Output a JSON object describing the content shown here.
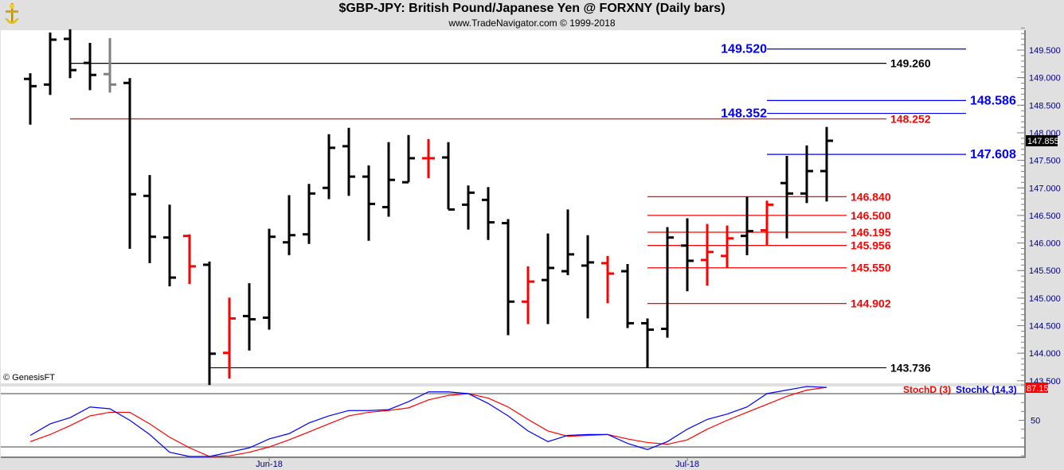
{
  "header": {
    "title": "$GBP-JPY:  British Pound/Japanese Yen @ FORXNY  (Daily bars)",
    "subtitle": "www.TradeNavigator.com © 1999-2018",
    "logo_icon": "gold-ship-wheel-logo"
  },
  "watermark": "© GenesisFT",
  "colors": {
    "up": "#000000",
    "down_highlight": "#ff0000",
    "gray": "#808080",
    "blue": "#0000ff",
    "red": "#ff0000",
    "axis_bg": "#e0e0e0",
    "axis_text": "#000080"
  },
  "chart_data": [
    {
      "type": "ohlc",
      "title": "$GBP-JPY:  British Pound/Japanese Yen @ FORXNY  (Daily bars)",
      "ylim": [
        143.5,
        149.9
      ],
      "y_tick_labels": [
        "149.500",
        "149.000",
        "148.500",
        "148.000",
        "147.500",
        "147.000",
        "146.500",
        "146.000",
        "145.500",
        "145.000",
        "144.500",
        "144.000",
        "143.500"
      ],
      "y_ticks": [
        149.5,
        149.0,
        148.5,
        148.0,
        147.5,
        147.0,
        146.5,
        146.0,
        145.5,
        145.0,
        144.5,
        144.0,
        143.5
      ],
      "x_tick_labels": [
        {
          "label": "Jun-18",
          "bar": 13
        },
        {
          "label": "Jul-18",
          "bar": 34
        }
      ],
      "last_price_label": "147.855",
      "last_price": 147.855,
      "bars": [
        {
          "o": 148.977,
          "h": 149.079,
          "l": 148.148,
          "c": 148.846,
          "color": "black"
        },
        {
          "o": 148.875,
          "h": 149.82,
          "l": 148.686,
          "c": 149.689,
          "color": "black"
        },
        {
          "o": 149.703,
          "h": 149.878,
          "l": 148.991,
          "c": 149.137,
          "color": "black"
        },
        {
          "o": 149.267,
          "h": 149.631,
          "l": 148.773,
          "c": 149.049,
          "color": "black"
        },
        {
          "o": 149.064,
          "h": 149.718,
          "l": 148.73,
          "c": 148.875,
          "color": "gray"
        },
        {
          "o": 148.904,
          "h": 148.991,
          "l": 145.895,
          "c": 146.884,
          "color": "black"
        },
        {
          "o": 146.855,
          "h": 147.233,
          "l": 145.634,
          "c": 146.113,
          "color": "black"
        },
        {
          "o": 146.099,
          "h": 146.695,
          "l": 145.212,
          "c": 145.372,
          "color": "black"
        },
        {
          "o": 146.128,
          "h": 146.157,
          "l": 145.256,
          "c": 145.576,
          "color": "red"
        },
        {
          "o": 145.605,
          "h": 145.663,
          "l": 143.424,
          "c": 143.991,
          "color": "black"
        },
        {
          "o": 144.006,
          "h": 145.009,
          "l": 143.541,
          "c": 144.631,
          "color": "red"
        },
        {
          "o": 144.674,
          "h": 145.27,
          "l": 144.049,
          "c": 144.616,
          "color": "black"
        },
        {
          "o": 144.645,
          "h": 146.259,
          "l": 144.427,
          "c": 146.113,
          "color": "black"
        },
        {
          "o": 146.012,
          "h": 146.869,
          "l": 145.779,
          "c": 146.142,
          "color": "black"
        },
        {
          "o": 146.157,
          "h": 147.073,
          "l": 145.983,
          "c": 146.898,
          "color": "black"
        },
        {
          "o": 147.0,
          "h": 147.974,
          "l": 146.796,
          "c": 147.727,
          "color": "black"
        },
        {
          "o": 147.756,
          "h": 148.09,
          "l": 146.855,
          "c": 147.204,
          "color": "black"
        },
        {
          "o": 147.204,
          "h": 147.407,
          "l": 146.041,
          "c": 146.709,
          "color": "black"
        },
        {
          "o": 146.651,
          "h": 147.829,
          "l": 146.477,
          "c": 147.145,
          "color": "black"
        },
        {
          "o": 147.102,
          "h": 147.959,
          "l": 147.102,
          "c": 147.538,
          "color": "black"
        },
        {
          "o": 147.538,
          "h": 147.887,
          "l": 147.174,
          "c": 147.538,
          "color": "red"
        },
        {
          "o": 147.552,
          "h": 147.829,
          "l": 146.608,
          "c": 146.608,
          "color": "black"
        },
        {
          "o": 146.695,
          "h": 147.044,
          "l": 146.244,
          "c": 146.913,
          "color": "black"
        },
        {
          "o": 146.782,
          "h": 147.015,
          "l": 146.055,
          "c": 146.375,
          "color": "black"
        },
        {
          "o": 146.36,
          "h": 146.433,
          "l": 144.326,
          "c": 144.936,
          "color": "black"
        },
        {
          "o": 144.936,
          "h": 145.576,
          "l": 144.529,
          "c": 145.3,
          "color": "red"
        },
        {
          "o": 145.328,
          "h": 146.172,
          "l": 144.529,
          "c": 145.547,
          "color": "black"
        },
        {
          "o": 145.488,
          "h": 146.608,
          "l": 145.416,
          "c": 145.794,
          "color": "black"
        },
        {
          "o": 145.59,
          "h": 146.142,
          "l": 144.631,
          "c": 145.648,
          "color": "black"
        },
        {
          "o": 145.634,
          "h": 145.765,
          "l": 144.907,
          "c": 145.445,
          "color": "red"
        },
        {
          "o": 145.488,
          "h": 145.619,
          "l": 144.456,
          "c": 144.544,
          "color": "black"
        },
        {
          "o": 144.544,
          "h": 144.631,
          "l": 143.736,
          "c": 144.427,
          "color": "black"
        },
        {
          "o": 144.442,
          "h": 146.288,
          "l": 144.282,
          "c": 146.099,
          "color": "black"
        },
        {
          "o": 145.953,
          "h": 146.448,
          "l": 145.125,
          "c": 145.677,
          "color": "black"
        },
        {
          "o": 145.692,
          "h": 146.346,
          "l": 145.227,
          "c": 145.837,
          "color": "red"
        },
        {
          "o": 145.765,
          "h": 146.317,
          "l": 145.55,
          "c": 146.084,
          "color": "red"
        },
        {
          "o": 146.128,
          "h": 146.84,
          "l": 145.779,
          "c": 146.215,
          "color": "black"
        },
        {
          "o": 146.23,
          "h": 146.767,
          "l": 145.954,
          "c": 146.695,
          "color": "red"
        },
        {
          "o": 147.087,
          "h": 147.581,
          "l": 146.084,
          "c": 146.898,
          "color": "black"
        },
        {
          "o": 146.898,
          "h": 147.77,
          "l": 146.724,
          "c": 147.305,
          "color": "black"
        },
        {
          "o": 147.305,
          "h": 148.105,
          "l": 146.753,
          "c": 147.855,
          "color": "black"
        }
      ],
      "levels": [
        {
          "label": "149.520",
          "price": 149.52,
          "color": "blue",
          "from_bar": 38,
          "to_bar": 48,
          "label_side": "left"
        },
        {
          "label": "149.260",
          "price": 149.26,
          "color": "black",
          "from_bar": 3,
          "to_bar": 44,
          "label_side": "right"
        },
        {
          "label": "148.586",
          "price": 148.586,
          "color": "blue",
          "from_bar": 38,
          "to_bar": 48,
          "label_side": "right"
        },
        {
          "label": "148.352",
          "price": 148.352,
          "color": "blue",
          "from_bar": 38,
          "to_bar": 48,
          "label_side": "left"
        },
        {
          "label": "148.252",
          "price": 148.252,
          "color": "red",
          "from_bar": 3,
          "to_bar": 44,
          "label_side": "right"
        },
        {
          "label": "147.608",
          "price": 147.608,
          "color": "blue",
          "from_bar": 38,
          "to_bar": 48,
          "label_side": "right"
        },
        {
          "label": "146.840",
          "price": 146.84,
          "color": "red",
          "from_bar": 32,
          "to_bar": 42,
          "label_side": "right"
        },
        {
          "label": "146.500",
          "price": 146.5,
          "color": "red",
          "from_bar": 32,
          "to_bar": 42,
          "label_side": "right"
        },
        {
          "label": "146.195",
          "price": 146.195,
          "color": "red",
          "from_bar": 32,
          "to_bar": 42,
          "label_side": "right"
        },
        {
          "label": "145.956",
          "price": 145.956,
          "color": "red",
          "from_bar": 32,
          "to_bar": 42,
          "label_side": "right"
        },
        {
          "label": "145.550",
          "price": 145.55,
          "color": "red",
          "from_bar": 32,
          "to_bar": 42,
          "label_side": "right"
        },
        {
          "label": "144.902",
          "price": 144.902,
          "color": "red",
          "from_bar": 32,
          "to_bar": 42,
          "label_side": "right"
        },
        {
          "label": "143.736",
          "price": 143.736,
          "color": "black",
          "from_bar": 10,
          "to_bar": 44,
          "label_side": "right"
        }
      ]
    },
    {
      "type": "line",
      "title": "Stochastic",
      "ylim": [
        0,
        100
      ],
      "y_tick_labels": [
        "50"
      ],
      "reference_lines": [
        20,
        80
      ],
      "legend": [
        {
          "name": "StochD (3)",
          "color": "red"
        },
        {
          "name": "StochK (14,3)",
          "color": "blue"
        }
      ],
      "legend_placement": "top-right",
      "last_value_label": "87.15",
      "series": [
        {
          "name": "StochK (14,3)",
          "color": "blue",
          "values": [
            33,
            46,
            53,
            65,
            63,
            50,
            34,
            14,
            5,
            6,
            14,
            19,
            29,
            35,
            47,
            55,
            61,
            61,
            62,
            71,
            82,
            82,
            80,
            69,
            55,
            38,
            26,
            33,
            34,
            34,
            24,
            17,
            26,
            40,
            51,
            57,
            65,
            80,
            84,
            88,
            87
          ]
        },
        {
          "name": "StochD (3)",
          "color": "red",
          "values": [
            26,
            34,
            44,
            55,
            59,
            59,
            46,
            31,
            19,
            8,
            10,
            14,
            20,
            28,
            37,
            46,
            55,
            59,
            61,
            64,
            73,
            78,
            80,
            75,
            65,
            51,
            38,
            32,
            33,
            34,
            29,
            25,
            23,
            28,
            40,
            50,
            59,
            68,
            77,
            84,
            87.15
          ]
        }
      ]
    }
  ]
}
